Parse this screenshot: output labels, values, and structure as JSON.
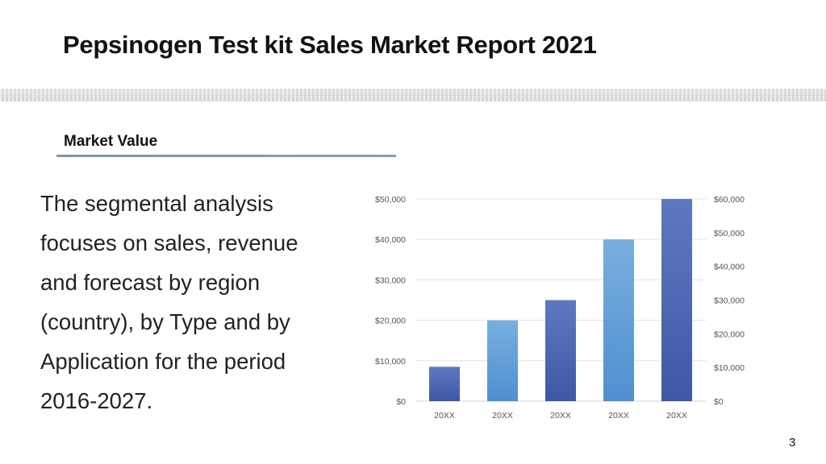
{
  "slide": {
    "title": "Pepsinogen Test kit Sales Market Report 2021",
    "section": "Market Value",
    "body": "The segmental analysis focuses on sales, revenue and forecast by region (country), by Type and by Application for the period 2016-2027.",
    "page_number": "3"
  },
  "colors": {
    "bar_dark": "#3f58a6",
    "bar_light": "#6aa6da",
    "gridline": "#e3e3e3",
    "tick_text": "#555555"
  },
  "chart_data": {
    "type": "bar",
    "categories": [
      "20XX",
      "20XX",
      "20XX",
      "20XX",
      "20XX"
    ],
    "values": [
      8500,
      20000,
      25000,
      40000,
      50000
    ],
    "bar_styles": [
      "dark",
      "light",
      "dark",
      "light",
      "dark"
    ],
    "title": "",
    "xlabel": "",
    "ylabel": "",
    "y_left": {
      "lim": [
        0,
        50000
      ],
      "tick_labels": [
        "$0",
        "$10,000",
        "$20,000",
        "$30,000",
        "$40,000",
        "$50,000"
      ]
    },
    "y_right": {
      "lim": [
        0,
        60000
      ],
      "tick_labels": [
        "$0",
        "$10,000",
        "$20,000",
        "$30,000",
        "$40,000",
        "$50,000",
        "$60,000"
      ]
    },
    "grid": true,
    "legend": "none"
  }
}
